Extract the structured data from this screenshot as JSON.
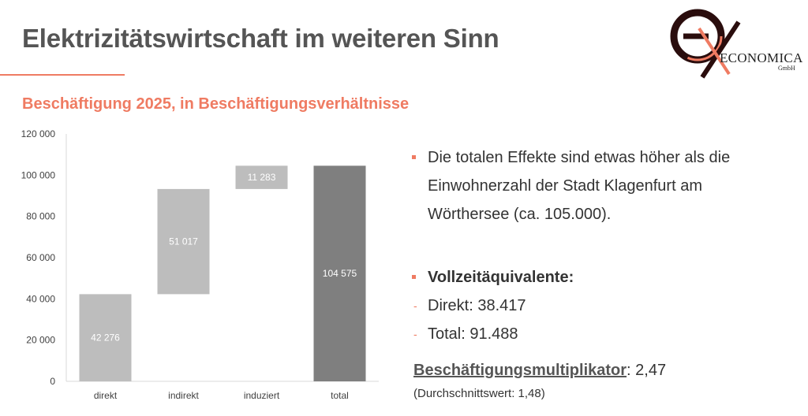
{
  "header": {
    "title": "Elektrizitätswirtschaft im weiteren Sinn",
    "subtitle": "Beschäftigung 2025, in Beschäftigungsverhältnisse"
  },
  "logo": {
    "text": "ECONOMICA",
    "sub": "GmbH"
  },
  "colors": {
    "accent": "#ef7b62",
    "bar_light": "#bdbdbd",
    "bar_total": "#7f7f7f"
  },
  "chart_data": {
    "type": "bar",
    "subtype": "waterfall",
    "categories": [
      "direkt",
      "indirekt",
      "induziert",
      "total"
    ],
    "values": [
      42276,
      51017,
      11283,
      104575
    ],
    "labels": [
      "42 276",
      "51 017",
      "11 283",
      "104 575"
    ],
    "bases": [
      0,
      42276,
      93293,
      0
    ],
    "ylim": [
      0,
      120000
    ],
    "yticks": [
      0,
      20000,
      40000,
      60000,
      80000,
      100000,
      120000
    ],
    "ytick_labels": [
      "0",
      "20 000",
      "40 000",
      "60 000",
      "80 000",
      "100 000",
      "120 000"
    ],
    "grid": false,
    "legend": "none"
  },
  "bullets": {
    "p1": "Die totalen Effekte sind etwas höher als die Einwohnerzahl der Stadt Klagenfurt am Wörthersee (ca. 105.000).",
    "vz_heading": "Vollzeitäquivalente:",
    "vz_items": [
      "Direkt: 38.417",
      "Total: 91.488"
    ]
  },
  "multiplier": {
    "label": "Beschäftigungsmultiplikator",
    "value": ": 2,47",
    "note": "(Durchschnittswert: 1,48)"
  }
}
